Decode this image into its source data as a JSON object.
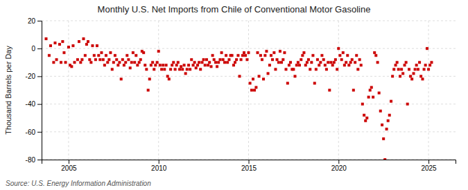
{
  "chart_data": {
    "type": "scatter",
    "title": "Monthly U.S. Net Imports from Chile of Conventional Motor Gasoline",
    "ylabel": "Thousand Barrels per Day",
    "source": "Source: U.S. Energy Information Administration",
    "color": "#cc0000",
    "marker": "square",
    "grid": true,
    "xlim": [
      2003.5,
      2026.5
    ],
    "xticks": [
      2005,
      2010,
      2015,
      2020,
      2025
    ],
    "ylim": [
      -80,
      20
    ],
    "yticks": [
      -80,
      -60,
      -40,
      -20,
      0,
      20
    ],
    "x": [
      2003.75,
      2003.92,
      2004.0,
      2004.17,
      2004.25,
      2004.33,
      2004.5,
      2004.58,
      2004.67,
      2004.75,
      2004.83,
      2005.0,
      2005.08,
      2005.17,
      2005.25,
      2005.33,
      2005.5,
      2005.58,
      2005.67,
      2005.75,
      2005.83,
      2005.92,
      2006.0,
      2006.08,
      2006.17,
      2006.25,
      2006.33,
      2006.42,
      2006.5,
      2006.58,
      2006.67,
      2006.75,
      2006.83,
      2006.92,
      2007.0,
      2007.08,
      2007.17,
      2007.25,
      2007.33,
      2007.42,
      2007.5,
      2007.58,
      2007.67,
      2007.75,
      2007.83,
      2007.92,
      2008.0,
      2008.08,
      2008.17,
      2008.25,
      2008.33,
      2008.42,
      2008.5,
      2008.58,
      2008.67,
      2008.75,
      2008.83,
      2008.92,
      2009.0,
      2009.08,
      2009.17,
      2009.25,
      2009.33,
      2009.42,
      2009.5,
      2009.58,
      2009.67,
      2009.75,
      2009.83,
      2009.92,
      2010.0,
      2010.08,
      2010.17,
      2010.25,
      2010.33,
      2010.42,
      2010.5,
      2010.58,
      2010.67,
      2010.75,
      2010.83,
      2010.92,
      2011.0,
      2011.08,
      2011.17,
      2011.25,
      2011.33,
      2011.42,
      2011.5,
      2011.58,
      2011.67,
      2011.75,
      2011.83,
      2011.92,
      2012.0,
      2012.08,
      2012.17,
      2012.25,
      2012.33,
      2012.42,
      2012.5,
      2012.58,
      2012.67,
      2012.75,
      2012.83,
      2012.92,
      2013.0,
      2013.08,
      2013.17,
      2013.25,
      2013.33,
      2013.42,
      2013.5,
      2013.58,
      2013.67,
      2013.75,
      2013.83,
      2013.92,
      2014.0,
      2014.08,
      2014.17,
      2014.25,
      2014.33,
      2014.42,
      2014.5,
      2014.58,
      2014.67,
      2014.75,
      2014.83,
      2014.92,
      2015.0,
      2015.08,
      2015.17,
      2015.25,
      2015.33,
      2015.42,
      2015.5,
      2015.58,
      2015.67,
      2015.75,
      2015.83,
      2015.92,
      2016.0,
      2016.08,
      2016.17,
      2016.25,
      2016.33,
      2016.42,
      2016.5,
      2016.58,
      2016.67,
      2016.75,
      2016.83,
      2016.92,
      2017.0,
      2017.08,
      2017.17,
      2017.25,
      2017.33,
      2017.42,
      2017.5,
      2017.58,
      2017.67,
      2017.75,
      2017.83,
      2017.92,
      2018.0,
      2018.08,
      2018.17,
      2018.25,
      2018.33,
      2018.42,
      2018.5,
      2018.58,
      2018.67,
      2018.75,
      2018.83,
      2018.92,
      2019.0,
      2019.08,
      2019.17,
      2019.25,
      2019.33,
      2019.42,
      2019.5,
      2019.58,
      2019.67,
      2019.75,
      2019.83,
      2019.92,
      2020.0,
      2020.08,
      2020.17,
      2020.25,
      2020.33,
      2020.42,
      2020.5,
      2020.58,
      2020.67,
      2020.75,
      2020.83,
      2020.92,
      2021.0,
      2021.08,
      2021.17,
      2021.25,
      2021.33,
      2021.42,
      2021.5,
      2021.58,
      2021.67,
      2021.75,
      2021.83,
      2021.92,
      2022.0,
      2022.08,
      2022.17,
      2022.25,
      2022.33,
      2022.42,
      2022.5,
      2022.58,
      2022.67,
      2022.75,
      2022.83,
      2022.92,
      2023.0,
      2023.08,
      2023.17,
      2023.25,
      2023.33,
      2023.42,
      2023.5,
      2023.58,
      2023.67,
      2023.75,
      2023.83,
      2023.92,
      2024.0,
      2024.08,
      2024.17,
      2024.25,
      2024.33,
      2024.42,
      2024.5,
      2024.58,
      2024.67,
      2024.75,
      2024.83,
      2024.92,
      2025.0,
      2025.08,
      2025.17
    ],
    "values": [
      7,
      -5,
      2,
      -10,
      4,
      -8,
      3,
      -10,
      5,
      -3,
      -10,
      1,
      -12,
      -13,
      2,
      -10,
      -8,
      5,
      -10,
      -8,
      7,
      -5,
      3,
      5,
      -8,
      -10,
      2,
      -5,
      -8,
      2,
      -5,
      -8,
      -3,
      -8,
      -12,
      -5,
      -10,
      -8,
      -3,
      -15,
      -10,
      -5,
      -8,
      -12,
      -10,
      -22,
      -8,
      -12,
      -10,
      -5,
      -8,
      -14,
      -10,
      -3,
      -10,
      -5,
      -12,
      -10,
      -8,
      -2,
      -3,
      -12,
      -15,
      -30,
      -22,
      -12,
      -10,
      -15,
      -12,
      -10,
      -2,
      -12,
      -15,
      -12,
      -15,
      -12,
      -20,
      -22,
      -15,
      -12,
      -10,
      -15,
      -12,
      -10,
      -15,
      -13,
      -15,
      -12,
      -18,
      -15,
      -12,
      -15,
      -8,
      -12,
      -10,
      -14,
      -12,
      -10,
      -15,
      -10,
      -8,
      -12,
      -8,
      -12,
      -10,
      -13,
      -5,
      -8,
      -10,
      -13,
      -10,
      -8,
      -3,
      -8,
      -10,
      -5,
      -10,
      -8,
      -5,
      -5,
      -12,
      -10,
      -8,
      -5,
      -20,
      -8,
      -5,
      -3,
      -5,
      -8,
      -3,
      -25,
      -30,
      -22,
      -30,
      -28,
      -3,
      -20,
      -5,
      -8,
      -22,
      -5,
      -2,
      -18,
      -12,
      -5,
      -8,
      -3,
      -15,
      -8,
      -10,
      -2,
      -10,
      -8,
      -3,
      -15,
      -25,
      -12,
      -10,
      -15,
      -15,
      -20,
      -12,
      -10,
      -12,
      -8,
      -5,
      -3,
      -12,
      -10,
      -8,
      -15,
      -10,
      -5,
      -25,
      -15,
      -8,
      -12,
      -10,
      -5,
      -8,
      -12,
      -15,
      -10,
      -30,
      -10,
      -12,
      -10,
      -8,
      -15,
      0,
      -5,
      -8,
      -3,
      -12,
      -10,
      -5,
      -12,
      -10,
      -8,
      -30,
      -10,
      -5,
      -15,
      -8,
      -12,
      -40,
      -48,
      -52,
      -50,
      -35,
      -30,
      -28,
      -35,
      -3,
      -5,
      -10,
      -32,
      -45,
      -55,
      -65,
      -80,
      -58,
      -52,
      -48,
      -38,
      -20,
      -15,
      -12,
      -10,
      -15,
      -20,
      -15,
      -18,
      -12,
      -10,
      -40,
      -15,
      -20,
      -22,
      -18,
      -15,
      -12,
      -15,
      -10,
      -20,
      -22,
      -15,
      -12,
      0,
      -15,
      -12,
      -10
    ]
  }
}
